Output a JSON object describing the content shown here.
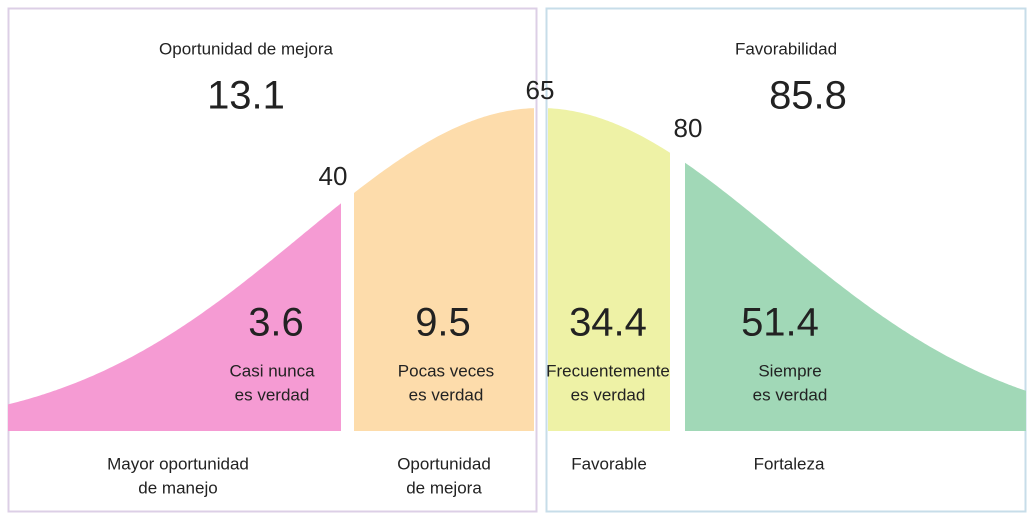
{
  "left_panel": {
    "title": "Oportunidad de mejora",
    "value": 13.1
  },
  "right_panel": {
    "title": "Favorabilidad",
    "value": 85.8
  },
  "thresholds": [
    40,
    65,
    80
  ],
  "segments": [
    {
      "value": 3.6,
      "label": [
        "Casi nunca",
        "es verdad"
      ],
      "footer": [
        "Mayor oportunidad",
        "de manejo"
      ]
    },
    {
      "value": 9.5,
      "label": [
        "Pocas veces",
        "es verdad"
      ],
      "footer": [
        "Oportunidad",
        "de mejora"
      ]
    },
    {
      "value": 34.4,
      "label": [
        "Frecuentemente",
        "es verdad"
      ],
      "footer": [
        "Favorable"
      ]
    },
    {
      "value": 51.4,
      "label": [
        "Siempre",
        "es verdad"
      ],
      "footer": [
        "Fortaleza"
      ]
    }
  ]
}
